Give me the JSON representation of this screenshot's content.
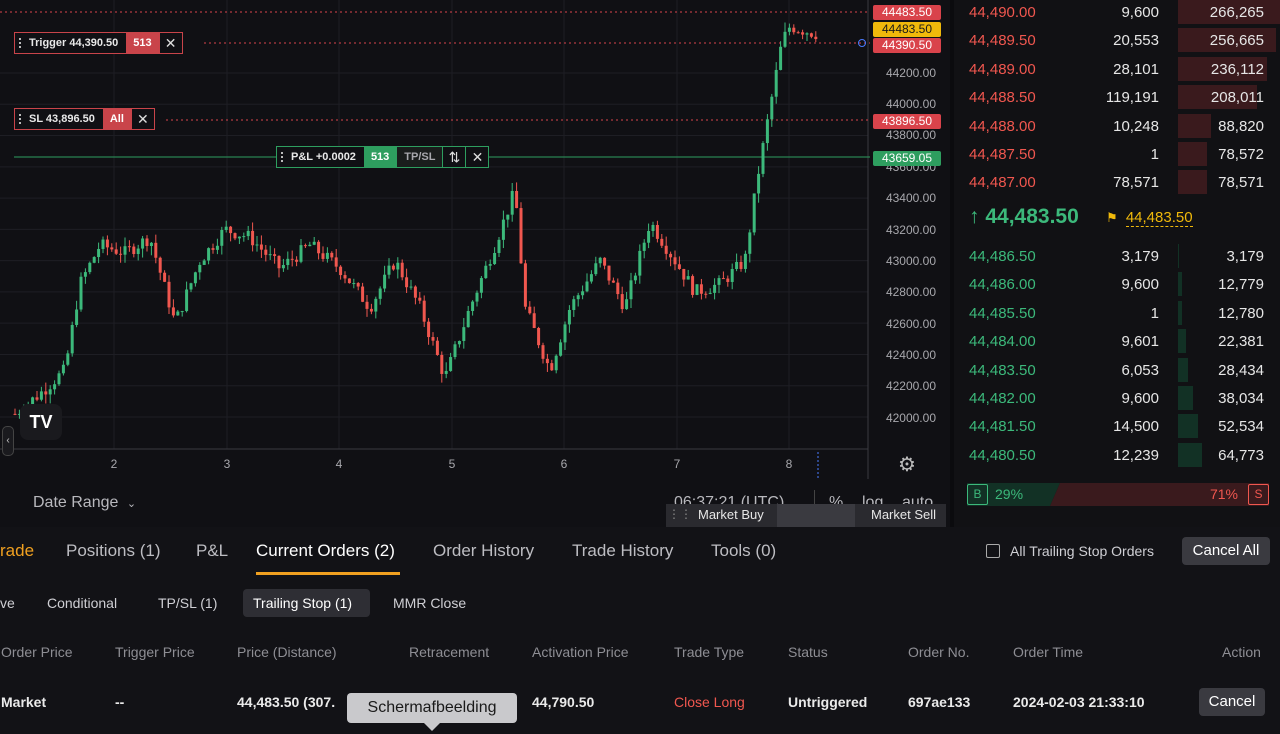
{
  "chart": {
    "price_axis": [
      "44200.00",
      "44000.00",
      "43800.00",
      "43600.00",
      "43400.00",
      "43200.00",
      "43000.00",
      "42800.00",
      "42600.00",
      "42400.00",
      "42200.00",
      "42000.00"
    ],
    "x_axis": [
      "2",
      "3",
      "4",
      "5",
      "6",
      "7",
      "8"
    ],
    "price_tags": {
      "tag_red_top": "44483.50",
      "tag_yellow": "44483.50",
      "tag_trigger": "44390.50",
      "tag_sl": "43896.50",
      "tag_pnl": "43659.05"
    },
    "trigger_order": {
      "label": "Trigger 44,390.50",
      "qty": "513"
    },
    "sl_order": {
      "label": "SL 43,896.50",
      "qty": "All"
    },
    "pnl_order": {
      "label": "P&L +0.0002",
      "qty": "513",
      "tpsl": "TP/SL"
    },
    "date_range": "Date Range",
    "clock": "06:37:21 (UTC)",
    "toggles": {
      "pct": "%",
      "log": "log",
      "auto": "auto"
    },
    "market_buy": "Market Buy",
    "market_sell": "Market Sell",
    "colors": {
      "up": "#3cb97b",
      "down": "#f0574f",
      "accent": "#f0b90b"
    }
  },
  "orderbook": {
    "asks": [
      {
        "price": "44,490.00",
        "qty": "9,600",
        "total": "266,265",
        "depth": 0.98
      },
      {
        "price": "44,489.50",
        "qty": "20,553",
        "total": "256,665",
        "depth": 0.94
      },
      {
        "price": "44,489.00",
        "qty": "28,101",
        "total": "236,112",
        "depth": 0.86
      },
      {
        "price": "44,488.50",
        "qty": "119,191",
        "total": "208,011",
        "depth": 0.76
      },
      {
        "price": "44,488.00",
        "qty": "10,248",
        "total": "88,820",
        "depth": 0.32
      },
      {
        "price": "44,487.50",
        "qty": "1",
        "total": "78,572",
        "depth": 0.28
      },
      {
        "price": "44,487.00",
        "qty": "78,571",
        "total": "78,571",
        "depth": 0.28
      }
    ],
    "last_price": "44,483.50",
    "mark_price": "44,483.50",
    "bids": [
      {
        "price": "44,486.50",
        "qty": "3,179",
        "total": "3,179",
        "depth": 0.01
      },
      {
        "price": "44,486.00",
        "qty": "9,600",
        "total": "12,779",
        "depth": 0.04
      },
      {
        "price": "44,485.50",
        "qty": "1",
        "total": "12,780",
        "depth": 0.04
      },
      {
        "price": "44,484.00",
        "qty": "9,601",
        "total": "22,381",
        "depth": 0.08
      },
      {
        "price": "44,483.50",
        "qty": "6,053",
        "total": "28,434",
        "depth": 0.1
      },
      {
        "price": "44,482.00",
        "qty": "9,600",
        "total": "38,034",
        "depth": 0.14
      },
      {
        "price": "44,481.50",
        "qty": "14,500",
        "total": "52,534",
        "depth": 0.19
      },
      {
        "price": "44,480.50",
        "qty": "12,239",
        "total": "64,773",
        "depth": 0.23
      }
    ],
    "buy_label": "B",
    "buy_pct": "29%",
    "sell_label": "S",
    "sell_pct": "71%",
    "buy_ratio": 0.29
  },
  "tabs": [
    "rade",
    "Positions (1)",
    "P&L",
    "Current Orders (2)",
    "Order History",
    "Trade History",
    "Tools (0)"
  ],
  "active_tab": "Current Orders (2)",
  "all_trailing_label": "All Trailing Stop Orders",
  "cancel_all": "Cancel All",
  "subtabs": [
    "ve",
    "Conditional",
    "TP/SL (1)",
    "Trailing Stop (1)",
    "MMR Close"
  ],
  "active_subtab": "Trailing Stop (1)",
  "columns": [
    "Order Price",
    "Trigger Price",
    "Price (Distance)",
    "Retracement",
    "Activation Price",
    "Trade Type",
    "Status",
    "Order No.",
    "Order Time",
    "Action"
  ],
  "row": {
    "order_price": "Market",
    "trigger_price": "--",
    "price_distance": "44,483.50 (307.",
    "activation_price": "44,790.50",
    "trade_type": "Close Long",
    "status": "Untriggered",
    "order_no": "697ae133",
    "order_time": "2024-02-03 21:33:10",
    "action": "Cancel"
  },
  "tooltip": "Schermafbeelding"
}
